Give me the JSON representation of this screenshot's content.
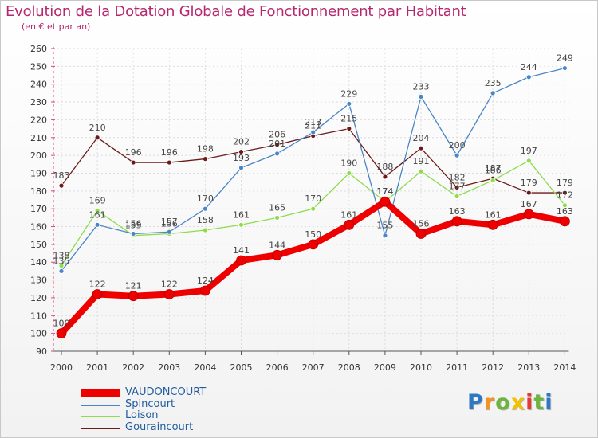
{
  "chart_data": {
    "type": "line",
    "title": "Evolution de la Dotation Globale de Fonctionnement par Habitant",
    "subtitle": "(en € et par an)",
    "xlabel": "",
    "ylabel": "",
    "ylim": [
      90,
      260
    ],
    "ytick_step": 10,
    "grid": true,
    "legend_position": "bottom-left",
    "categories": [
      "2000",
      "2001",
      "2002",
      "2003",
      "2004",
      "2005",
      "2006",
      "2007",
      "2008",
      "2009",
      "2010",
      "2011",
      "2012",
      "2013",
      "2014"
    ],
    "series": [
      {
        "name": "VAUDONCOURT",
        "color": "#ee0000",
        "values": [
          100,
          122,
          121,
          122,
          124,
          141,
          144,
          150,
          161,
          174,
          156,
          163,
          161,
          167,
          163
        ]
      },
      {
        "name": "Spincourt",
        "color": "#4a86c5",
        "values": [
          135,
          161,
          156,
          157,
          170,
          193,
          201,
          213,
          229,
          155,
          233,
          200,
          235,
          244,
          249
        ]
      },
      {
        "name": "Loison",
        "color": "#8edc4c",
        "values": [
          138,
          169,
          155,
          156,
          158,
          161,
          165,
          170,
          190,
          174,
          191,
          177,
          186,
          197,
          172
        ]
      },
      {
        "name": "Gouraincourt",
        "color": "#6b1a1a",
        "values": [
          183,
          210,
          196,
          196,
          198,
          202,
          206,
          211,
          215,
          188,
          204,
          182,
          187,
          179,
          179
        ]
      }
    ]
  },
  "logo": {
    "letters": [
      {
        "ch": "P",
        "color": "#2f77c1"
      },
      {
        "ch": "r",
        "color": "#f39221"
      },
      {
        "ch": "o",
        "color": "#6db43f"
      },
      {
        "ch": "x",
        "color": "#f2c200"
      },
      {
        "ch": "i",
        "color": "#e83a2d"
      },
      {
        "ch": "t",
        "color": "#6db43f"
      },
      {
        "ch": "i",
        "color": "#2f77c1"
      }
    ]
  }
}
